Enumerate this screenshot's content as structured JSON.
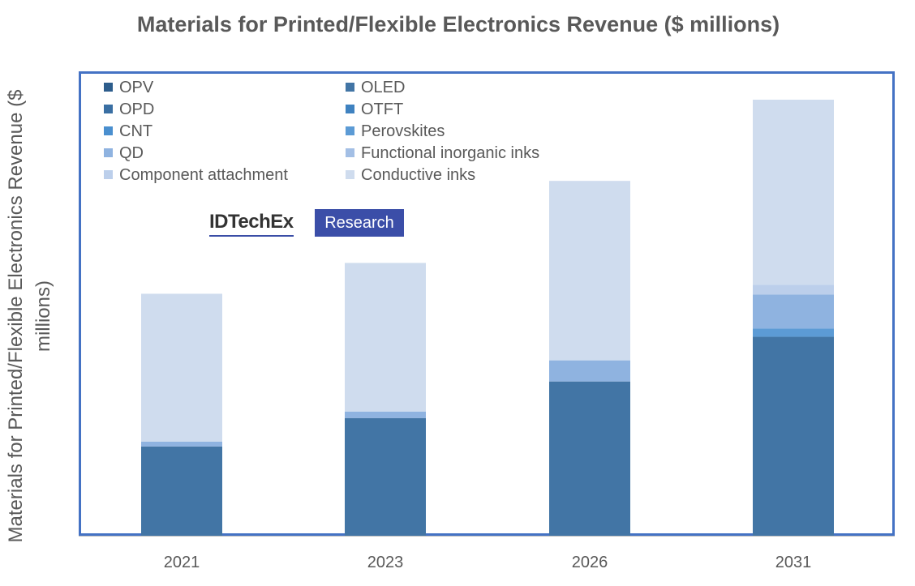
{
  "chart_data": {
    "type": "bar",
    "stacked": true,
    "title": "Materials for Printed/Flexible Electronics Revenue ($ millions)",
    "xlabel": "",
    "ylabel": "Materials for Printed/Flexible Electronics Revenue ($ millions)",
    "categories": [
      "2021",
      "2023",
      "2026",
      "2031"
    ],
    "ylim": [
      0,
      540
    ],
    "grid": false,
    "legend_position": "top-left",
    "series": [
      {
        "name": "OPV",
        "color": "#2d5d8c",
        "values": [
          0,
          0,
          0,
          0
        ]
      },
      {
        "name": "OLED",
        "color": "#4275a5",
        "values": [
          110,
          145,
          190,
          245
        ]
      },
      {
        "name": "OPD",
        "color": "#3a6fa3",
        "values": [
          0,
          0,
          0,
          0
        ]
      },
      {
        "name": "OTFT",
        "color": "#3f82c0",
        "values": [
          0,
          0,
          0,
          0
        ]
      },
      {
        "name": "CNT",
        "color": "#4a8fcf",
        "values": [
          0,
          0,
          0,
          0
        ]
      },
      {
        "name": "Perovskites",
        "color": "#5c9bd5",
        "values": [
          0,
          0,
          0,
          10
        ]
      },
      {
        "name": "QD",
        "color": "#8fb3e0",
        "values": [
          6,
          8,
          26,
          42
        ]
      },
      {
        "name": "Functional inorganic inks",
        "color": "#a3bfe5",
        "values": [
          0,
          0,
          0,
          0
        ]
      },
      {
        "name": "Component attachment",
        "color": "#bccfeb",
        "values": [
          0,
          0,
          0,
          12
        ]
      },
      {
        "name": "Conductive inks",
        "color": "#cfdcee",
        "values": [
          182,
          183,
          221,
          228
        ]
      }
    ]
  },
  "logo": {
    "brand": "IDTechEx",
    "badge": "Research"
  }
}
